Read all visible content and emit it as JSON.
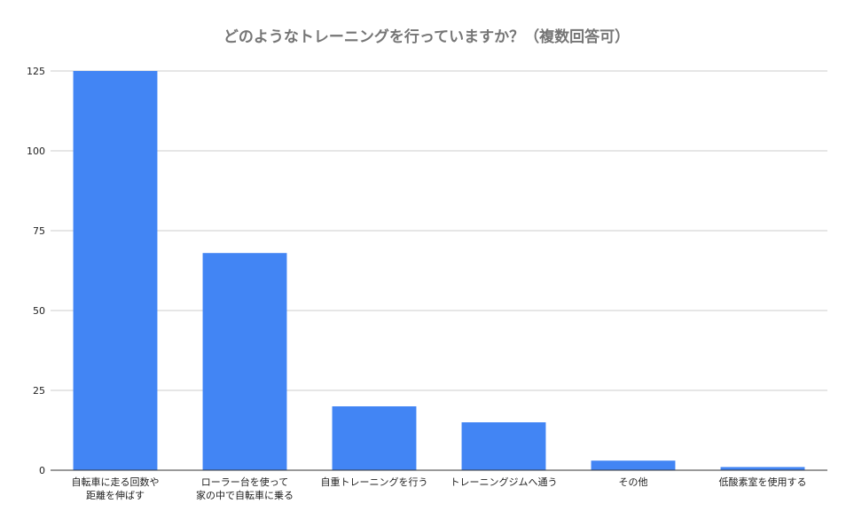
{
  "chart_data": {
    "type": "bar",
    "title": "どのようなトレーニングを行っていますか？（複数回答可）",
    "xlabel": "",
    "ylabel": "",
    "categories": [
      [
        "自転車に走る回数や",
        "距離を伸ばす"
      ],
      [
        "ローラー台を使って",
        "家の中で自転車に乗る"
      ],
      [
        "自重トレーニングを行う"
      ],
      [
        "トレーニングジムへ通う"
      ],
      [
        "その他"
      ],
      [
        "低酸素室を使用する"
      ]
    ],
    "values": [
      125,
      68,
      20,
      15,
      3,
      1
    ],
    "ylim": [
      0,
      125
    ],
    "yticks": [
      0,
      25,
      50,
      75,
      100,
      125
    ],
    "grid": true,
    "legend": "none",
    "colors": {
      "bar": "#4285f4",
      "grid": "#cccccc",
      "axis": "#333333",
      "title": "#757575"
    }
  }
}
